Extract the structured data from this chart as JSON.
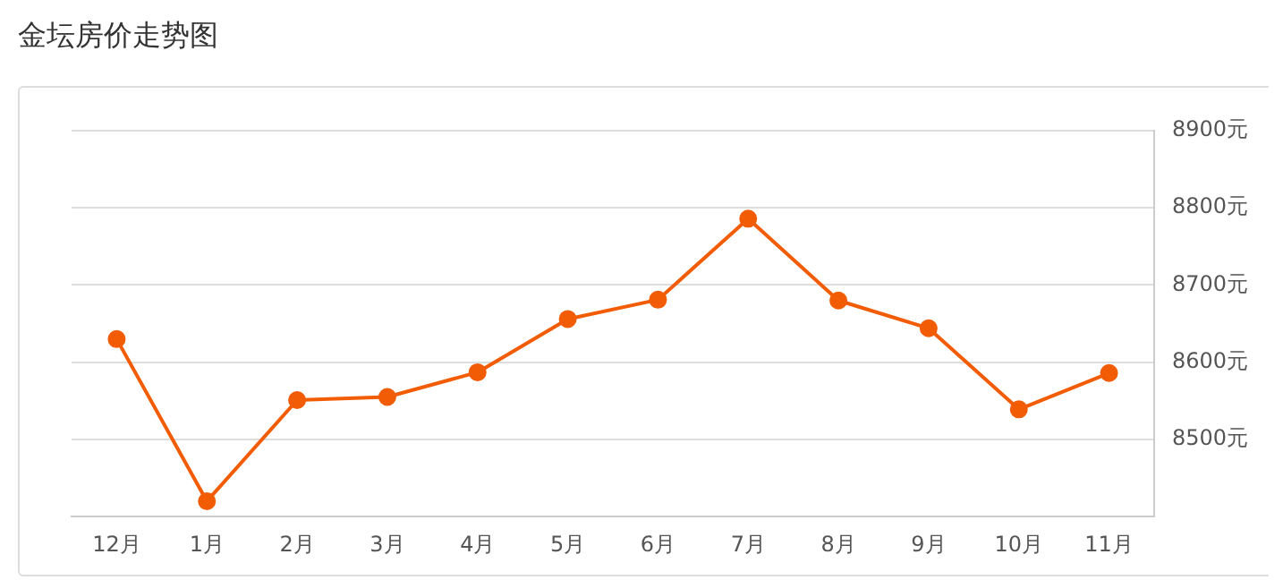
{
  "chart_data": {
    "type": "line",
    "title": "金坛房价走势图",
    "categories": [
      "12月",
      "1月",
      "2月",
      "3月",
      "4月",
      "5月",
      "6月",
      "7月",
      "8月",
      "9月",
      "10月",
      "11月"
    ],
    "series": [
      {
        "color": "#f25c05",
        "values": [
          8630,
          8420,
          8551,
          8555,
          8587,
          8656,
          8681,
          8786,
          8680,
          8644,
          8539,
          8586
        ]
      }
    ],
    "ylim": [
      8400,
      8900
    ],
    "yticks": [
      {
        "value": 8500,
        "label": "8500元"
      },
      {
        "value": 8600,
        "label": "8600元"
      },
      {
        "value": 8700,
        "label": "8700元"
      },
      {
        "value": 8800,
        "label": "8800元"
      },
      {
        "value": 8900,
        "label": "8900元"
      }
    ],
    "grid": "y",
    "legend": false,
    "marker": "circle"
  }
}
